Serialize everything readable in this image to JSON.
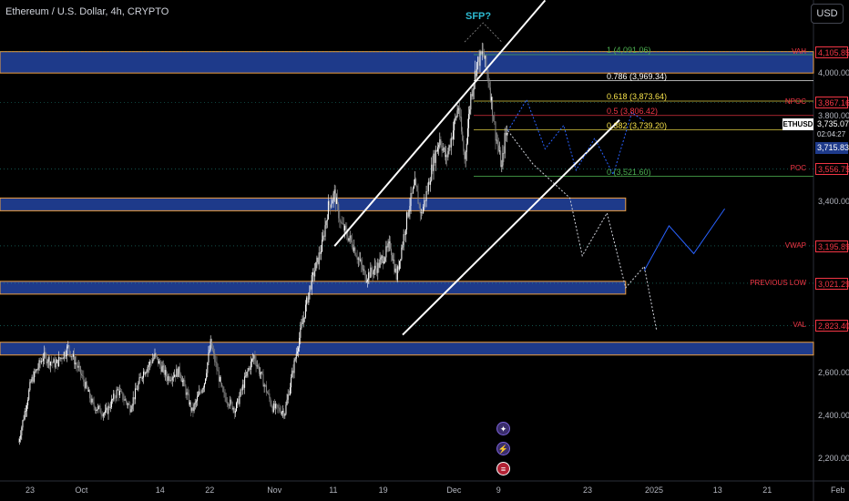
{
  "header": {
    "title": "Ethereum / U.S. Dollar, 4h, CRYPTO",
    "currency_button": "USD"
  },
  "annotations": {
    "sfp_label": "SFP?",
    "symbol": "ETHUSD",
    "countdown": "02:04:27",
    "current_price": "3,735.07",
    "extra_price_label": "3,715.83"
  },
  "colors": {
    "background": "#000000",
    "zone_fill": "#1e3a8a",
    "zone_border": "#f0a040",
    "fib_white": "#ffffff",
    "fib_yellow": "#f7e34b",
    "fib_red": "#f23645",
    "fib_green": "#4caf50",
    "level_red": "#f23645",
    "level_green": "#26a69a",
    "projection_white": "#d1d4dc",
    "projection_blue": "#2962ff",
    "channel": "#ffffff"
  },
  "chart_data": {
    "type": "candlestick",
    "title": "Ethereum / U.S. Dollar, 4h, CRYPTO",
    "ylim": [
      2130,
      4270
    ],
    "y_ticks": [
      "4,000.00",
      "3,800.00",
      "3,400.00",
      "2,600.00",
      "2,400.00",
      "2,200.00"
    ],
    "y_tick_values": [
      4000,
      3800,
      3400,
      2600,
      2400,
      2200
    ],
    "x_ticks": [
      "23",
      "Oct",
      "14",
      "22",
      "Nov",
      "11",
      "19",
      "Dec",
      "9",
      "23",
      "2025",
      "13",
      "21",
      "Feb"
    ],
    "x_tick_days": [
      0,
      8,
      21,
      29,
      39,
      49,
      57,
      68,
      76,
      90,
      100,
      111,
      119,
      130
    ],
    "x_axis_start": "2024-09-23",
    "price_path": [
      [
        -2,
        2280
      ],
      [
        0,
        2560
      ],
      [
        2,
        2680
      ],
      [
        4,
        2640
      ],
      [
        6,
        2720
      ],
      [
        8,
        2600
      ],
      [
        10,
        2450
      ],
      [
        12,
        2410
      ],
      [
        14,
        2520
      ],
      [
        16,
        2440
      ],
      [
        18,
        2600
      ],
      [
        20,
        2680
      ],
      [
        22,
        2580
      ],
      [
        24,
        2610
      ],
      [
        26,
        2420
      ],
      [
        28,
        2560
      ],
      [
        29,
        2740
      ],
      [
        31,
        2500
      ],
      [
        33,
        2430
      ],
      [
        35,
        2610
      ],
      [
        36,
        2680
      ],
      [
        38,
        2520
      ],
      [
        39,
        2440
      ],
      [
        41,
        2420
      ],
      [
        43,
        2720
      ],
      [
        45,
        3000
      ],
      [
        47,
        3200
      ],
      [
        48,
        3380
      ],
      [
        49,
        3440
      ],
      [
        50,
        3300
      ],
      [
        52,
        3200
      ],
      [
        54,
        3050
      ],
      [
        56,
        3100
      ],
      [
        58,
        3200
      ],
      [
        59,
        3050
      ],
      [
        61,
        3380
      ],
      [
        62,
        3480
      ],
      [
        63,
        3340
      ],
      [
        64,
        3460
      ],
      [
        65,
        3600
      ],
      [
        66,
        3700
      ],
      [
        67,
        3600
      ],
      [
        68,
        3720
      ],
      [
        69,
        3850
      ],
      [
        70,
        3600
      ],
      [
        71,
        3900
      ],
      [
        72,
        4050
      ],
      [
        73,
        4100
      ],
      [
        74,
        3950
      ],
      [
        75,
        3720
      ],
      [
        76,
        3560
      ],
      [
        76.5,
        3700
      ],
      [
        77,
        3735
      ]
    ],
    "channel_lines": [
      {
        "start": [
          49,
          3195
        ],
        "end": [
          83,
          4345
        ]
      },
      {
        "start": [
          60,
          2780
        ],
        "end": [
          95,
          3785
        ]
      }
    ],
    "horizontal_zones": [
      {
        "low": 4005,
        "high": 4105
      },
      {
        "low": 3380,
        "high": 3420
      },
      {
        "low": 3000,
        "high": 3030
      },
      {
        "low": 2710,
        "high": 2745
      }
    ],
    "zone_extent_days": [
      -2,
      96,
      96,
      129
    ],
    "levels": [
      {
        "name": "VAH",
        "price_label": "4,105.85",
        "value": 4105.85,
        "color": "#f23645"
      },
      {
        "name": "NPOC",
        "price_label": "3,867.16",
        "value": 3867.16,
        "color": "#f23645"
      },
      {
        "name": "POC",
        "price_label": "3,556.75",
        "value": 3556.75,
        "color": "#f23645"
      },
      {
        "name": "VWAP",
        "price_label": "3,195.89",
        "value": 3195.89,
        "color": "#f23645"
      },
      {
        "name": "PREVIOUS LOW",
        "price_label": "3,021.29",
        "value": 3021.29,
        "color": "#f23645"
      },
      {
        "name": "VAL",
        "price_label": "2,823.40",
        "value": 2823.4,
        "color": "#f23645"
      }
    ],
    "fib_levels": [
      {
        "label": "1 (4,091.06)",
        "value": 4091.06,
        "color": "#4caf50"
      },
      {
        "label": "0.786 (3,969.34)",
        "value": 3969.34,
        "color": "#ffffff"
      },
      {
        "label": "0.618 (3,873.64)",
        "value": 3873.64,
        "color": "#f7e34b"
      },
      {
        "label": "0.5 (3,806.42)",
        "value": 3806.42,
        "color": "#f23645"
      },
      {
        "label": "0.382 (3,739.20)",
        "value": 3739.2,
        "color": "#f7e34b"
      },
      {
        "label": "0 (3,521.60)",
        "value": 3521.6,
        "color": "#4caf50"
      }
    ],
    "projection_white": [
      [
        77,
        3735
      ],
      [
        81,
        3580
      ],
      [
        87,
        3420
      ],
      [
        89,
        3150
      ],
      [
        93,
        3350
      ],
      [
        96,
        3000
      ],
      [
        99,
        3100
      ],
      [
        101,
        2800
      ]
    ],
    "projection_blue": [
      [
        77,
        3735
      ],
      [
        80,
        3880
      ],
      [
        83,
        3650
      ],
      [
        86,
        3760
      ],
      [
        88,
        3550
      ],
      [
        91,
        3700
      ],
      [
        94,
        3530
      ],
      [
        97,
        3820
      ],
      [
        99,
        3780
      ]
    ],
    "projection_blue_low": [
      [
        99,
        3080
      ],
      [
        103,
        3290
      ],
      [
        107,
        3160
      ],
      [
        112,
        3370
      ]
    ],
    "sfp_wedge": [
      [
        70,
        4150
      ],
      [
        73,
        4240
      ],
      [
        76,
        4150
      ]
    ],
    "grid": false,
    "legend": "none"
  }
}
